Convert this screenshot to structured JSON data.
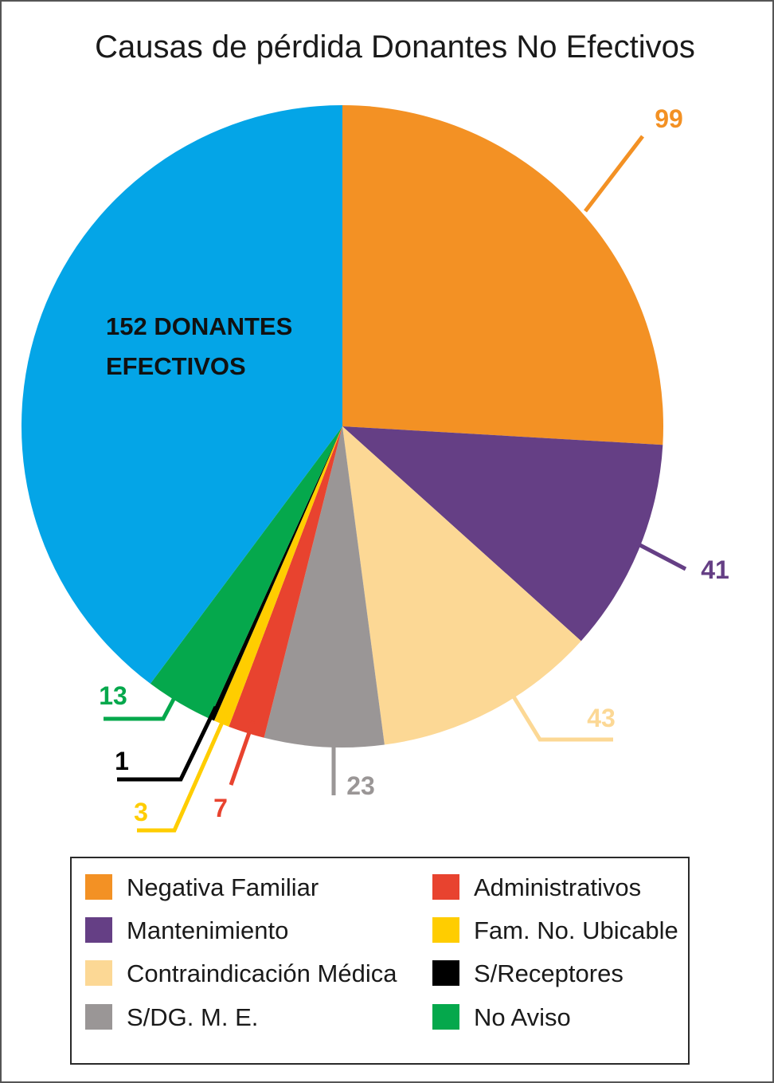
{
  "chart_data": {
    "type": "pie",
    "title": "Causas de pérdida Donantes No Efectivos",
    "center_label": [
      "152 DONANTES",
      "EFECTIVOS"
    ],
    "slices": [
      {
        "name": "Negativa Familiar",
        "value": 99,
        "label": "99",
        "color": "#F39124",
        "label_color": "#F39124"
      },
      {
        "name": "Mantenimiento",
        "value": 41,
        "label": "41",
        "color": "#653F85",
        "label_color": "#653F85"
      },
      {
        "name": "Contraindicación Médica",
        "value": 43,
        "label": "43",
        "color": "#FCD895",
        "label_color": "#FCD895"
      },
      {
        "name": "S/DG. M. E.",
        "value": 23,
        "label": "23",
        "color": "#9A9696",
        "label_color": "#9A9696"
      },
      {
        "name": "Administrativos",
        "value": 7,
        "label": "7",
        "color": "#E8432F",
        "label_color": "#E8432F"
      },
      {
        "name": "Fam. No. Ubicable",
        "value": 3,
        "label": "3",
        "color": "#FFCD00",
        "label_color": "#FFCD00"
      },
      {
        "name": "S/Receptores",
        "value": 1,
        "label": "1",
        "color": "#000000",
        "label_color": "#000000"
      },
      {
        "name": "No Aviso",
        "value": 13,
        "label": "13",
        "color": "#05A84C",
        "label_color": "#05A84C"
      },
      {
        "name": "Donantes Efectivos",
        "value": 152,
        "label": "",
        "color": "#04A5E7",
        "label_color": "#111111"
      }
    ],
    "legend": [
      {
        "label": "Negativa Familiar",
        "color": "#F39124"
      },
      {
        "label": "Mantenimiento",
        "color": "#653F85"
      },
      {
        "label": "Contraindicación Médica",
        "color": "#FCD895"
      },
      {
        "label": "S/DG. M. E.",
        "color": "#9A9696"
      },
      {
        "label": "Administrativos",
        "color": "#E8432F"
      },
      {
        "label": "Fam. No. Ubicable",
        "color": "#FFCD00"
      },
      {
        "label": "S/Receptores",
        "color": "#000000"
      },
      {
        "label": "No Aviso",
        "color": "#05A84C"
      }
    ],
    "legend_placement": "bottom"
  }
}
